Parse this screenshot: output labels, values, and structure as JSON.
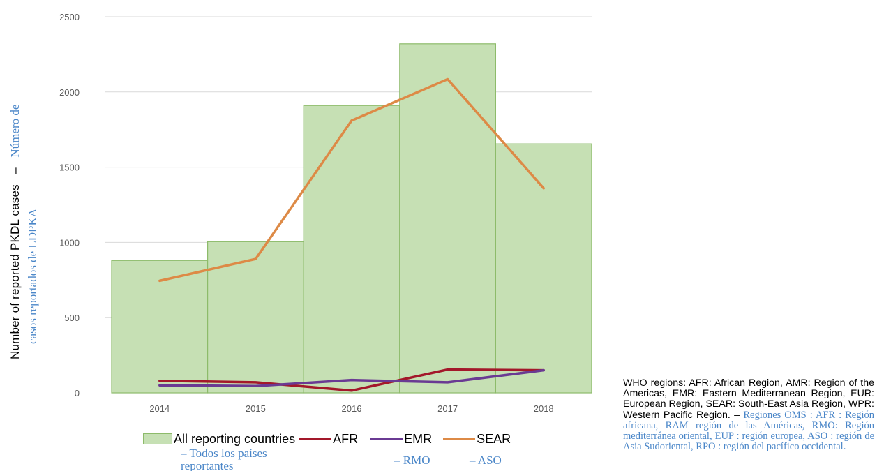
{
  "chart_data": {
    "type": "bar",
    "categories": [
      "2014",
      "2015",
      "2016",
      "2017",
      "2018"
    ],
    "yticks": [
      "0",
      "500",
      "1000",
      "1500",
      "2000",
      "2500"
    ],
    "ylim": [
      0,
      2500
    ],
    "grid": true,
    "ylabel": "Number of reported PKDL cases",
    "ylabel_es": "Número de casos reportados de LDPKA",
    "ylabel_sep": "–",
    "series": [
      {
        "name": "All reporting countries",
        "kind": "bar",
        "color": "#c6e0b4",
        "values": [
          880,
          1005,
          1910,
          2320,
          1655
        ]
      },
      {
        "name": "AFR",
        "kind": "line",
        "color": "#a3182a",
        "values": [
          80,
          70,
          15,
          155,
          150
        ]
      },
      {
        "name": "EMR",
        "kind": "line",
        "color": "#6a3a93",
        "values": [
          50,
          45,
          85,
          70,
          150
        ]
      },
      {
        "name": "SEAR",
        "kind": "line",
        "color": "#dd8a46",
        "values": [
          745,
          890,
          1810,
          2085,
          1360
        ]
      }
    ],
    "legend_translations": {
      "all": "– Todos los países reportantes",
      "emr": "– RMO",
      "sear": "– ASO"
    },
    "note": {
      "en": "WHO regions: AFR: African Region, AMR: Region of the Americas, EMR: Eastern Mediterranean Region, EUR: European Region, SEAR: South-East Asia Region, WPR: Western Pacific Region. –",
      "es": "Regiones OMS : AFR : Región africana, RAM región de las Américas, RMO: Región mediterránea oriental, EUP : región europea, ASO : región de Asia Sudoriental, RPO : región del pacífico occidental."
    }
  }
}
